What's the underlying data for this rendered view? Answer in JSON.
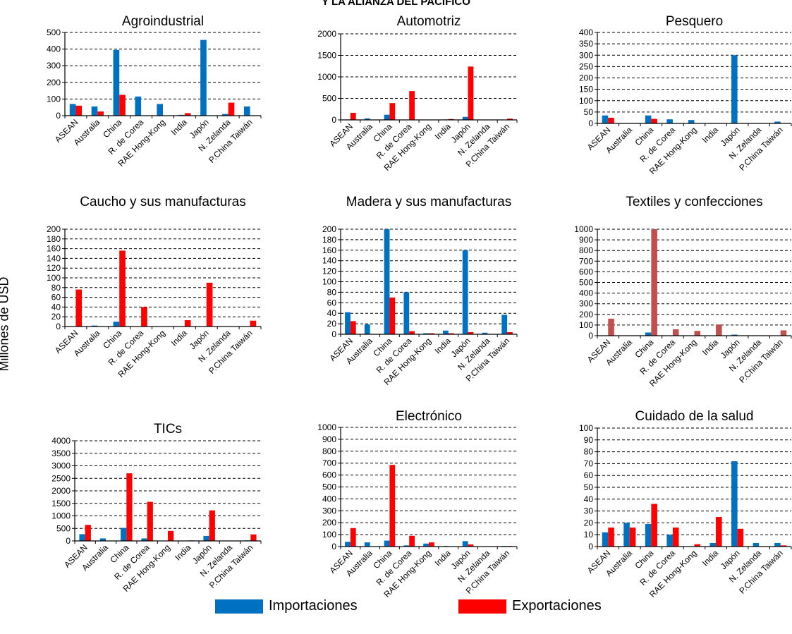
{
  "figure": {
    "title": "Y LA ALIANZA DEL PACIFICO",
    "ylabel": "Millones de USD"
  },
  "colors": {
    "importaciones": "#0070c0",
    "exportaciones": "#ff0000",
    "exportaciones_textiles": "#c0504d"
  },
  "legend": {
    "importaciones": "Importaciones",
    "exportaciones": "Exportaciones"
  },
  "chart_data": [
    {
      "type": "bar",
      "title": "Agroindustrial",
      "categories": [
        "ASEAN",
        "Australia",
        "China",
        "R. de Corea",
        "RAE Hong-Kong",
        "India",
        "Japón",
        "N. Zelanda",
        "P.China Taiwán"
      ],
      "ylim": [
        0,
        500
      ],
      "yticks": [
        0,
        100,
        200,
        300,
        400,
        500
      ],
      "series": [
        {
          "name": "Importaciones",
          "values": [
            70,
            55,
            395,
            115,
            70,
            5,
            455,
            10,
            55
          ]
        },
        {
          "name": "Exportaciones",
          "values": [
            60,
            25,
            125,
            0,
            0,
            15,
            0,
            78,
            0
          ]
        }
      ]
    },
    {
      "type": "bar",
      "title": "Automotriz",
      "categories": [
        "ASEAN",
        "Australia",
        "China",
        "R. de Corea",
        "RAE Hong-Kong",
        "India",
        "Japón",
        "N. Zelanda",
        "P.China Taiwán"
      ],
      "ylim": [
        0,
        2000
      ],
      "yticks": [
        0,
        500,
        1000,
        1500,
        2000
      ],
      "series": [
        {
          "name": "Importaciones",
          "values": [
            10,
            35,
            120,
            0,
            0,
            10,
            70,
            0,
            0
          ]
        },
        {
          "name": "Exportaciones",
          "values": [
            165,
            5,
            390,
            670,
            5,
            20,
            1240,
            0,
            30
          ]
        }
      ]
    },
    {
      "type": "bar",
      "title": "Pesquero",
      "categories": [
        "ASEAN",
        "Australia",
        "China",
        "R. de Corea",
        "RAE Hong-Kong",
        "India",
        "Japón",
        "N. Zelanda",
        "P.China Taiwán"
      ],
      "ylim": [
        0,
        400
      ],
      "yticks": [
        0,
        50,
        100,
        150,
        200,
        250,
        300,
        350,
        400
      ],
      "series": [
        {
          "name": "Importaciones",
          "values": [
            35,
            0,
            35,
            18,
            15,
            0,
            300,
            0,
            8
          ]
        },
        {
          "name": "Exportaciones",
          "values": [
            25,
            0,
            20,
            0,
            0,
            0,
            0,
            0,
            0
          ]
        }
      ]
    },
    {
      "type": "bar",
      "title": "Caucho y sus manufacturas",
      "categories": [
        "ASEAN",
        "Australia",
        "China",
        "R. de Corea",
        "RAE Hong-Kong",
        "India",
        "Japón",
        "N. Zelanda",
        "P.China Taiwán"
      ],
      "ylim": [
        0,
        200
      ],
      "yticks": [
        0,
        20,
        40,
        60,
        80,
        100,
        120,
        140,
        160,
        180,
        200
      ],
      "series": [
        {
          "name": "Importaciones",
          "values": [
            0,
            2,
            10,
            0,
            0,
            0,
            0,
            0,
            0
          ]
        },
        {
          "name": "Exportaciones",
          "values": [
            76,
            0,
            156,
            40,
            0,
            13,
            90,
            0,
            12
          ]
        }
      ]
    },
    {
      "type": "bar",
      "title": "Madera y sus manufacturas",
      "categories": [
        "ASEAN",
        "Australia",
        "China",
        "R. de Corea",
        "RAE Hong-Kong",
        "India",
        "Japón",
        "N. Zelanda",
        "P.China Taiwán"
      ],
      "ylim": [
        0,
        200
      ],
      "yticks": [
        0,
        20,
        40,
        60,
        80,
        100,
        120,
        140,
        160,
        180,
        200
      ],
      "series": [
        {
          "name": "Importaciones",
          "values": [
            42,
            19,
            200,
            80,
            2,
            7,
            160,
            3,
            37
          ]
        },
        {
          "name": "Exportaciones",
          "values": [
            25,
            0,
            70,
            6,
            2,
            2,
            4,
            0,
            4
          ]
        }
      ]
    },
    {
      "type": "bar",
      "title": "Textiles y confecciones",
      "categories": [
        "ASEAN",
        "Australia",
        "China",
        "R. de Corea",
        "RAE Hong-Kong",
        "India",
        "Japón",
        "N. Zelanda",
        "P.China Taiwán"
      ],
      "ylim": [
        0,
        1000
      ],
      "yticks": [
        0,
        100,
        200,
        300,
        400,
        500,
        600,
        700,
        800,
        900,
        1000
      ],
      "series": [
        {
          "name": "Importaciones",
          "values": [
            0,
            0,
            30,
            0,
            0,
            0,
            10,
            0,
            0
          ]
        },
        {
          "name": "Exportaciones",
          "values": [
            160,
            0,
            1000,
            60,
            45,
            105,
            0,
            0,
            50
          ]
        }
      ]
    },
    {
      "type": "bar",
      "title": "TICs",
      "categories": [
        "ASEAN",
        "Australia",
        "China",
        "R. de Corea",
        "RAE Hong-Kong",
        "India",
        "Japón",
        "N. Zelanda",
        "P.China Taiwán"
      ],
      "ylim": [
        0,
        4000
      ],
      "yticks": [
        0,
        500,
        1000,
        1500,
        2000,
        2500,
        3000,
        3500,
        4000
      ],
      "series": [
        {
          "name": "Importaciones",
          "values": [
            270,
            100,
            520,
            100,
            0,
            10,
            200,
            0,
            20
          ]
        },
        {
          "name": "Exportaciones",
          "values": [
            640,
            0,
            2700,
            1560,
            400,
            20,
            1220,
            0,
            260
          ]
        }
      ]
    },
    {
      "type": "bar",
      "title": "Electrónico",
      "categories": [
        "ASEAN",
        "Australia",
        "China",
        "R. de Corea",
        "RAE Hong-Kong",
        "India",
        "Japón",
        "N. Zelanda",
        "P.China Taiwán"
      ],
      "ylim": [
        0,
        1000
      ],
      "yticks": [
        0,
        100,
        200,
        300,
        400,
        500,
        600,
        700,
        800,
        900,
        1000
      ],
      "series": [
        {
          "name": "Importaciones",
          "values": [
            40,
            35,
            50,
            10,
            25,
            5,
            45,
            0,
            5
          ]
        },
        {
          "name": "Exportaciones",
          "values": [
            155,
            0,
            685,
            90,
            35,
            0,
            18,
            0,
            5
          ]
        }
      ]
    },
    {
      "type": "bar",
      "title": "Cuidado de la salud",
      "categories": [
        "ASEAN",
        "Australia",
        "China",
        "R. de Corea",
        "RAE Hong-Kong",
        "India",
        "Japón",
        "N. Zelanda",
        "P.China Taiwán"
      ],
      "ylim": [
        0,
        100
      ],
      "yticks": [
        0,
        10,
        20,
        30,
        40,
        50,
        60,
        70,
        80,
        90,
        100
      ],
      "series": [
        {
          "name": "Importaciones",
          "values": [
            12,
            20,
            19,
            10,
            0,
            3,
            72,
            3,
            3
          ]
        },
        {
          "name": "Exportaciones",
          "values": [
            16,
            16,
            36,
            16,
            2,
            25,
            15,
            0,
            1
          ]
        }
      ]
    }
  ]
}
